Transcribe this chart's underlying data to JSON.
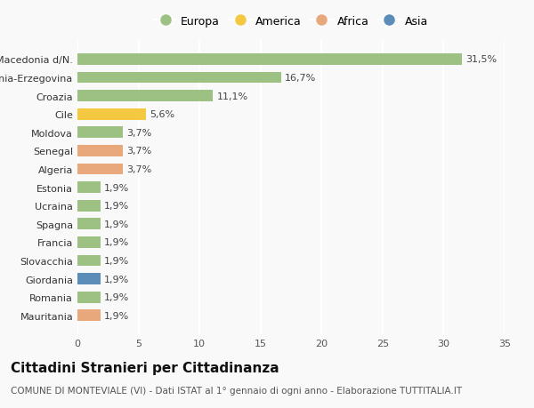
{
  "categories": [
    "Mauritania",
    "Romania",
    "Giordania",
    "Slovacchia",
    "Francia",
    "Spagna",
    "Ucraina",
    "Estonia",
    "Algeria",
    "Senegal",
    "Moldova",
    "Cile",
    "Croazia",
    "Bosnia-Erzegovina",
    "Macedonia d/N."
  ],
  "values": [
    1.9,
    1.9,
    1.9,
    1.9,
    1.9,
    1.9,
    1.9,
    1.9,
    3.7,
    3.7,
    3.7,
    5.6,
    11.1,
    16.7,
    31.5
  ],
  "labels": [
    "1,9%",
    "1,9%",
    "1,9%",
    "1,9%",
    "1,9%",
    "1,9%",
    "1,9%",
    "1,9%",
    "3,7%",
    "3,7%",
    "3,7%",
    "5,6%",
    "11,1%",
    "16,7%",
    "31,5%"
  ],
  "colors": [
    "#E8A87C",
    "#9DC183",
    "#5B8DB8",
    "#9DC183",
    "#9DC183",
    "#9DC183",
    "#9DC183",
    "#9DC183",
    "#E8A87C",
    "#E8A87C",
    "#9DC183",
    "#F5C842",
    "#9DC183",
    "#9DC183",
    "#9DC183"
  ],
  "legend": {
    "Europa": "#9DC183",
    "America": "#F5C842",
    "Africa": "#E8A87C",
    "Asia": "#5B8DB8"
  },
  "xlim": [
    0,
    35
  ],
  "xticks": [
    0,
    5,
    10,
    15,
    20,
    25,
    30,
    35
  ],
  "title": "Cittadini Stranieri per Cittadinanza",
  "subtitle": "COMUNE DI MONTEVIALE (VI) - Dati ISTAT al 1° gennaio di ogni anno - Elaborazione TUTTITALIA.IT",
  "background_color": "#f9f9f9",
  "grid_color": "#ffffff",
  "bar_height": 0.62,
  "title_fontsize": 11,
  "subtitle_fontsize": 7.5,
  "label_fontsize": 8,
  "tick_fontsize": 8,
  "value_fontsize": 8
}
